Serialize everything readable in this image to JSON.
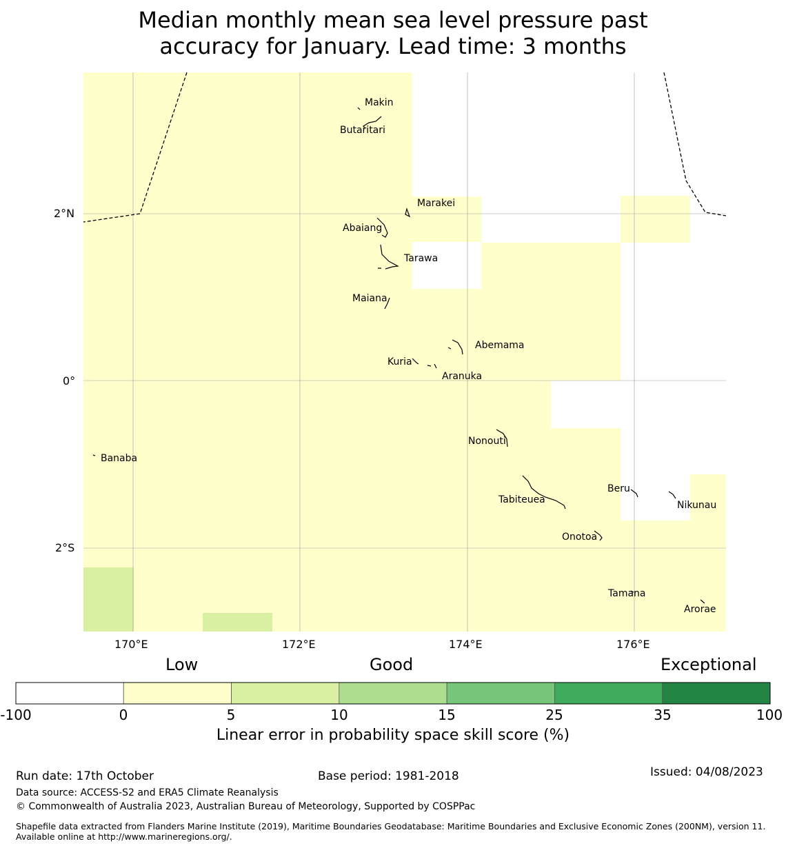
{
  "title_line1": "Median monthly mean sea level pressure past",
  "title_line2": "accuracy for January. Lead time: 3 months",
  "axes": {
    "lat_labels": [
      "2°N",
      "0°",
      "2°S"
    ],
    "lon_labels": [
      "170°E",
      "172°E",
      "174°E",
      "176°E"
    ]
  },
  "islands": [
    {
      "name": "Makin"
    },
    {
      "name": "Butaritari"
    },
    {
      "name": "Marakei"
    },
    {
      "name": "Abaiang"
    },
    {
      "name": "Tarawa"
    },
    {
      "name": "Maiana"
    },
    {
      "name": "Abemama"
    },
    {
      "name": "Kuria"
    },
    {
      "name": "Aranuka"
    },
    {
      "name": "Banaba"
    },
    {
      "name": "Nonouti"
    },
    {
      "name": "Beru"
    },
    {
      "name": "Tabiteuea"
    },
    {
      "name": "Nikunau"
    },
    {
      "name": "Onotoa"
    },
    {
      "name": "Tamana"
    },
    {
      "name": "Arorae"
    }
  ],
  "colorbar": {
    "tier_low": "Low",
    "tier_good": "Good",
    "tier_exceptional": "Exceptional",
    "ticks": [
      "-100",
      "0",
      "5",
      "10",
      "15",
      "25",
      "35",
      "100"
    ],
    "colors": [
      "#ffffff",
      "#ffffcc",
      "#d9f0a3",
      "#addd8e",
      "#78c679",
      "#41ab5d",
      "#238443"
    ],
    "label": "Linear error in probability space skill score (%)"
  },
  "footer": {
    "run_date": "Run date: 17th October",
    "base_period": "Base period: 1981-2018",
    "issued": "Issued: 04/08/2023",
    "data_source": "Data source: ACCESS-S2 and ERA5 Climate Reanalysis",
    "copyright": "© Commonwealth of Australia 2023, Australian Bureau of Meteorology, Supported by COSPPac",
    "shapefile": "Shapefile data extracted from Flanders Marine Institute (2019), Maritime Boundaries Geodatabase: Maritime Boundaries and Exclusive Economic Zones (200NM), version 11. Available online at http://www.marineregions.org/."
  }
}
